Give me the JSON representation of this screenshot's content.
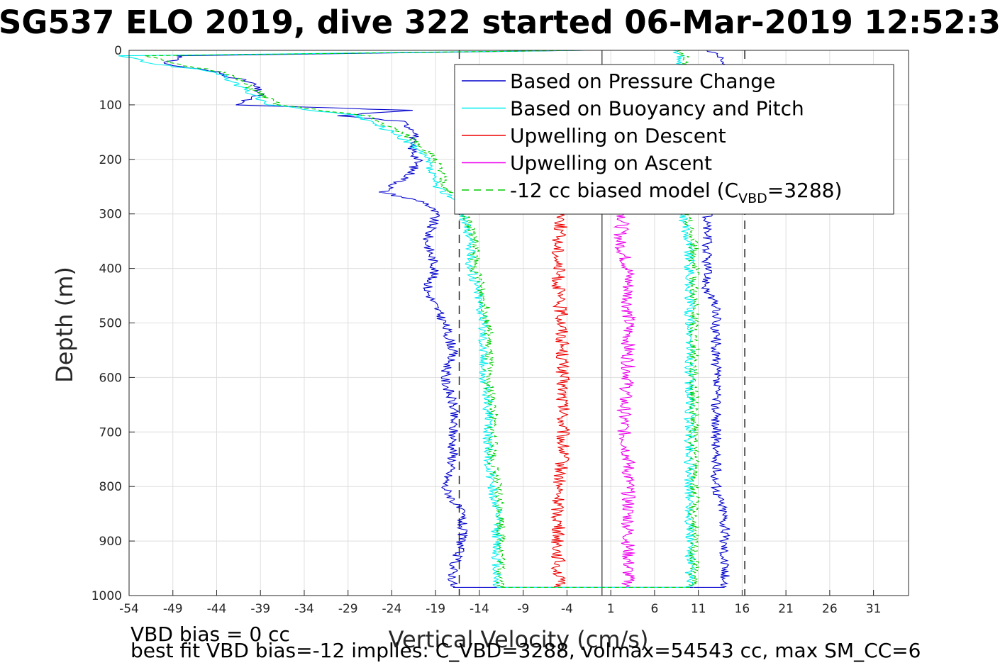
{
  "chart_data": {
    "type": "line",
    "title": "SG537 ELO 2019, dive 322 started 06-Mar-2019 12:52:3",
    "xlabel": "Vertical Velocity (cm/s)",
    "ylabel": "Depth (m)",
    "xlim": [
      -54,
      35
    ],
    "ylim": [
      0,
      1000
    ],
    "y_reversed": true,
    "grid": true,
    "x_ticks": [
      -54,
      -49,
      -44,
      -39,
      -34,
      -29,
      -24,
      -19,
      -14,
      -9,
      -4,
      1,
      6,
      11,
      16,
      21,
      26,
      31
    ],
    "y_ticks": [
      0,
      100,
      200,
      300,
      400,
      500,
      600,
      700,
      800,
      900,
      1000
    ],
    "reference_lines": {
      "solid": [
        0.0
      ],
      "dashed": [
        -16.3,
        16.3
      ]
    },
    "legend_placement": "top-right",
    "series": [
      {
        "name": "Based on Pressure Change",
        "color": "#0000cc",
        "style": "solid",
        "depth": [
          0,
          10,
          25,
          40,
          60,
          80,
          100,
          110,
          120,
          130,
          150,
          170,
          200,
          230,
          260,
          280,
          300,
          350,
          400,
          440,
          470,
          500,
          550,
          600,
          650,
          700,
          750,
          800,
          850,
          900,
          950,
          985
        ],
        "descent": [
          -2,
          -48,
          -50,
          -44,
          -40,
          -39,
          -42,
          -22,
          -30,
          -23,
          -21,
          -22,
          -21,
          -22,
          -25,
          -20,
          -19,
          -20,
          -19,
          -20,
          -19,
          -18,
          -17,
          -18,
          -17,
          -17,
          -17,
          -18,
          -16,
          -16,
          -17,
          -17
        ],
        "ascent": [
          12,
          13,
          14,
          13,
          13,
          13,
          13,
          13,
          13,
          12,
          12,
          12,
          12,
          12,
          12,
          12,
          12,
          12,
          12,
          12,
          13,
          13,
          13,
          13,
          13,
          13,
          13,
          13,
          14,
          14,
          14,
          14
        ]
      },
      {
        "name": "Based on Buoyancy and Pitch",
        "color": "#00eeee",
        "style": "solid",
        "depth": [
          0,
          10,
          25,
          40,
          60,
          80,
          100,
          120,
          150,
          170,
          200,
          250,
          280,
          300,
          350,
          400,
          450,
          500,
          550,
          600,
          650,
          700,
          750,
          800,
          850,
          900,
          950,
          985
        ],
        "descent": [
          -2,
          -55,
          -51,
          -44,
          -42,
          -40,
          -38,
          -28,
          -24,
          -22,
          -20,
          -19,
          -16,
          -16,
          -15,
          -15,
          -14,
          -13.5,
          -13.5,
          -13.5,
          -13,
          -13,
          -13,
          -12.5,
          -12,
          -12,
          -12,
          -12
        ],
        "ascent": [
          8,
          9,
          9,
          9,
          9,
          9,
          9,
          9,
          9,
          9,
          9,
          9,
          9,
          9,
          10,
          10,
          10,
          10,
          10,
          10,
          10,
          10,
          10,
          10,
          10,
          10,
          10,
          10
        ]
      },
      {
        "name": "Upwelling on Descent",
        "color": "#ee0000",
        "style": "solid",
        "depth": [
          300,
          350,
          400,
          450,
          500,
          550,
          600,
          650,
          700,
          750,
          800,
          850,
          900,
          950,
          985
        ],
        "values": [
          -4.5,
          -5,
          -5,
          -5,
          -4.5,
          -4.5,
          -4.5,
          -4.5,
          -4.5,
          -4.5,
          -5,
          -5,
          -5,
          -5,
          -5
        ]
      },
      {
        "name": "Upwelling on Ascent",
        "color": "#ee00ee",
        "style": "solid",
        "depth": [
          300,
          350,
          400,
          450,
          500,
          550,
          600,
          650,
          700,
          750,
          800,
          850,
          900,
          950,
          985
        ],
        "values": [
          2.5,
          2,
          3,
          3,
          3,
          3,
          3,
          2.5,
          2.5,
          3,
          3,
          3,
          3,
          3,
          3
        ]
      },
      {
        "name": "-12 cc biased model (C",
        "name_sub": "VBD",
        "name_suffix": "=3288)",
        "color": "#00cc00",
        "style": "dashed",
        "depth": [
          0,
          10,
          25,
          40,
          60,
          80,
          100,
          120,
          150,
          170,
          200,
          250,
          280,
          300,
          350,
          400,
          450,
          500,
          550,
          600,
          650,
          700,
          750,
          800,
          850,
          900,
          950,
          985
        ],
        "descent": [
          -2,
          -52,
          -49,
          -43,
          -41,
          -39,
          -37,
          -27,
          -23,
          -21,
          -19,
          -18,
          -15.5,
          -15.5,
          -14.5,
          -14.5,
          -13.5,
          -13,
          -13,
          -13,
          -12.5,
          -12.5,
          -12.5,
          -12,
          -11.5,
          -11.5,
          -11.5,
          -11.5
        ],
        "ascent": [
          8.5,
          9.5,
          9.5,
          9.5,
          9.5,
          9.5,
          9.5,
          9.5,
          9.5,
          9.5,
          9.5,
          9.5,
          9.5,
          9.5,
          10.5,
          10.5,
          10.5,
          10.5,
          10.5,
          10.5,
          10.5,
          10.5,
          10.5,
          10.5,
          10.5,
          10.5,
          10.5,
          10.5
        ]
      }
    ]
  },
  "notes": {
    "vbd_bias": "VBD bias = 0 cc",
    "best_fit": "best fit VBD bias=-12 implies: C_VBD=3288, volmax=54543 cc, max SM_CC=6"
  }
}
